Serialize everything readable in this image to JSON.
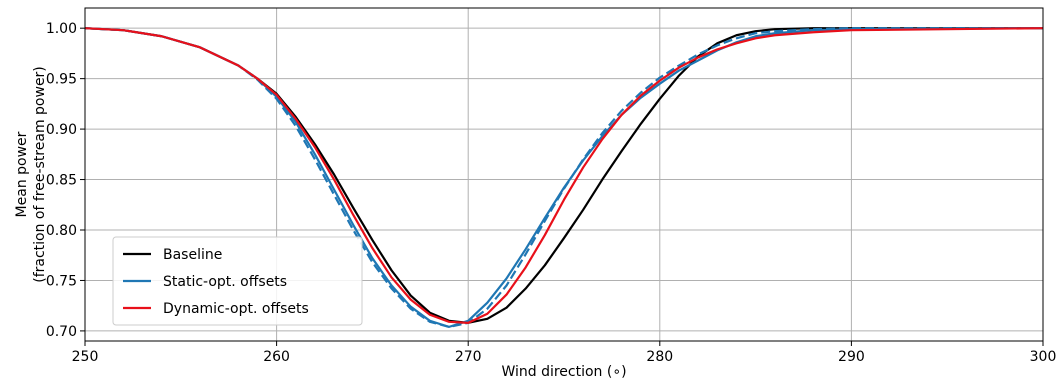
{
  "chart_data": {
    "type": "line",
    "xlabel": "Wind direction (∘)",
    "ylabel_line1": "Mean power",
    "ylabel_line2": "(fraction of free-stream power)",
    "xlim": [
      250,
      300
    ],
    "ylim": [
      0.69,
      1.02
    ],
    "xticks": [
      250,
      260,
      270,
      280,
      290,
      300
    ],
    "yticks": [
      0.7,
      0.75,
      0.8,
      0.85,
      0.9,
      0.95,
      1.0
    ],
    "grid": true,
    "legend_position": "lower-left",
    "series": [
      {
        "name": "Baseline",
        "color": "#000000",
        "dash": "solid",
        "x": [
          250,
          252,
          254,
          256,
          258,
          259,
          260,
          261,
          262,
          263,
          264,
          265,
          266,
          267,
          268,
          269,
          270,
          271,
          272,
          273,
          274,
          275,
          276,
          277,
          278,
          279,
          280,
          281,
          282,
          283,
          284,
          285,
          286,
          288,
          290,
          300
        ],
        "y": [
          1.0,
          0.998,
          0.992,
          0.981,
          0.963,
          0.95,
          0.935,
          0.912,
          0.885,
          0.855,
          0.822,
          0.79,
          0.76,
          0.735,
          0.718,
          0.71,
          0.708,
          0.712,
          0.723,
          0.742,
          0.765,
          0.792,
          0.82,
          0.85,
          0.878,
          0.905,
          0.93,
          0.953,
          0.972,
          0.985,
          0.993,
          0.997,
          0.999,
          1.0,
          1.0,
          1.0
        ]
      },
      {
        "name": "Static-opt. offsets",
        "color": "#1f77b4",
        "dash": "solid",
        "x": [
          250,
          252,
          254,
          256,
          258,
          259,
          260,
          261,
          262,
          263,
          264,
          265,
          266,
          267,
          268,
          269,
          270,
          271,
          272,
          273,
          274,
          275,
          276,
          277,
          278,
          279,
          280,
          281,
          282,
          283,
          284,
          285,
          286,
          288,
          290,
          300
        ],
        "y": [
          1.0,
          0.998,
          0.992,
          0.981,
          0.963,
          0.95,
          0.932,
          0.907,
          0.875,
          0.84,
          0.805,
          0.772,
          0.745,
          0.724,
          0.71,
          0.704,
          0.71,
          0.728,
          0.752,
          0.781,
          0.812,
          0.842,
          0.869,
          0.893,
          0.914,
          0.931,
          0.945,
          0.958,
          0.968,
          0.978,
          0.986,
          0.992,
          0.995,
          0.998,
          0.999,
          1.0
        ]
      },
      {
        "name": "",
        "color": "#1f77b4",
        "dash": "dashed",
        "x": [
          250,
          252,
          254,
          256,
          258,
          259,
          260,
          261,
          262,
          263,
          264,
          265,
          266,
          267,
          268,
          269,
          270,
          271,
          272,
          273,
          274,
          275,
          276,
          277,
          278,
          279,
          280,
          281,
          282,
          283,
          284,
          285,
          286,
          288,
          290,
          300
        ],
        "y": [
          1.0,
          0.998,
          0.992,
          0.981,
          0.963,
          0.949,
          0.93,
          0.903,
          0.87,
          0.835,
          0.8,
          0.768,
          0.742,
          0.722,
          0.709,
          0.704,
          0.708,
          0.722,
          0.745,
          0.776,
          0.809,
          0.841,
          0.87,
          0.896,
          0.918,
          0.936,
          0.951,
          0.963,
          0.974,
          0.983,
          0.99,
          0.995,
          0.997,
          0.999,
          1.0,
          1.0
        ]
      },
      {
        "name": "Dynamic-opt. offsets",
        "color": "#e8101a",
        "dash": "solid",
        "x": [
          250,
          252,
          254,
          256,
          258,
          259,
          260,
          261,
          262,
          263,
          264,
          265,
          266,
          267,
          268,
          269,
          270,
          271,
          272,
          273,
          274,
          275,
          276,
          277,
          278,
          279,
          280,
          281,
          282,
          283,
          284,
          285,
          286,
          288,
          290,
          300
        ],
        "y": [
          1.0,
          0.998,
          0.992,
          0.981,
          0.963,
          0.95,
          0.934,
          0.91,
          0.882,
          0.85,
          0.815,
          0.782,
          0.753,
          0.731,
          0.716,
          0.709,
          0.708,
          0.717,
          0.736,
          0.763,
          0.795,
          0.83,
          0.862,
          0.89,
          0.914,
          0.933,
          0.948,
          0.961,
          0.971,
          0.979,
          0.985,
          0.99,
          0.993,
          0.996,
          0.998,
          1.0
        ]
      }
    ]
  }
}
